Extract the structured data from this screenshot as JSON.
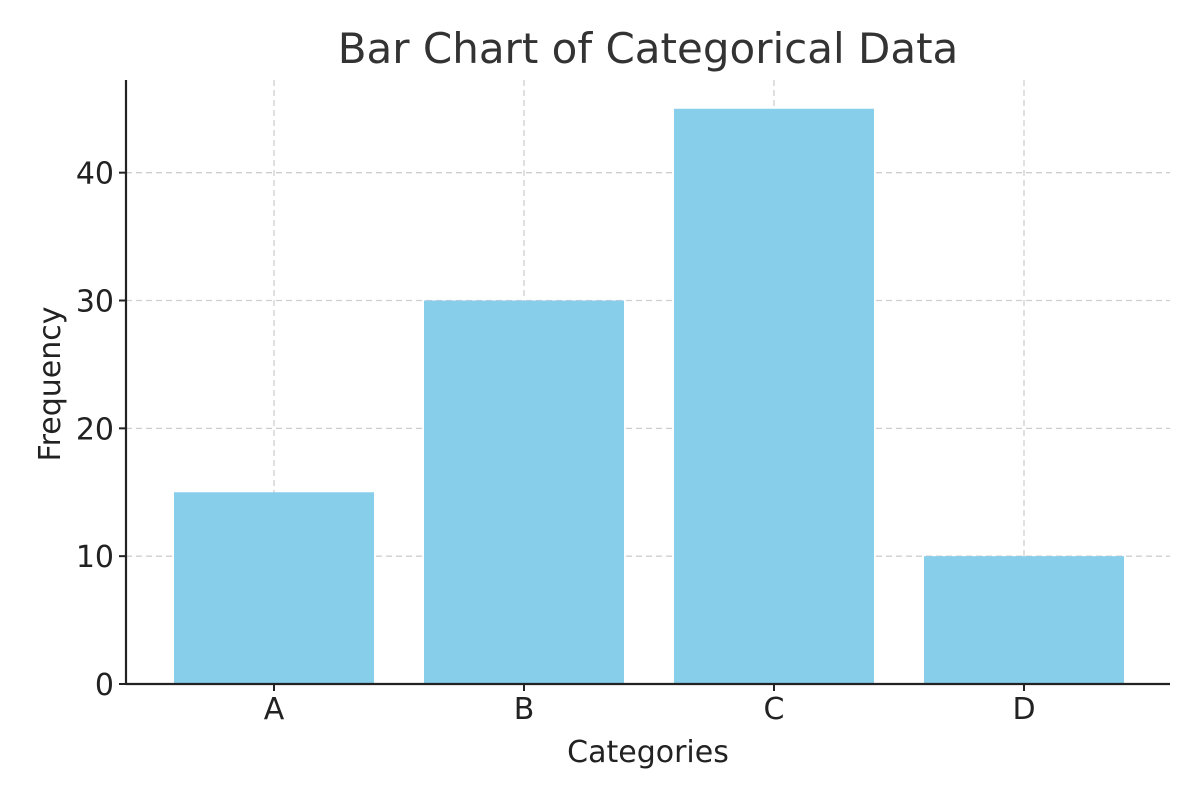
{
  "chart_data": {
    "type": "bar",
    "title": "Bar Chart of Categorical Data",
    "xlabel": "Categories",
    "ylabel": "Frequency",
    "categories": [
      "A",
      "B",
      "C",
      "D"
    ],
    "values": [
      15,
      30,
      45,
      10
    ],
    "ylim": [
      0,
      47.25
    ],
    "yticks": [
      0,
      10,
      20,
      30,
      40
    ],
    "grid": true,
    "colors": {
      "bar": "#87CEEB",
      "grid": "#cfcfcf",
      "axis": "#222222",
      "title": "#333333"
    }
  }
}
